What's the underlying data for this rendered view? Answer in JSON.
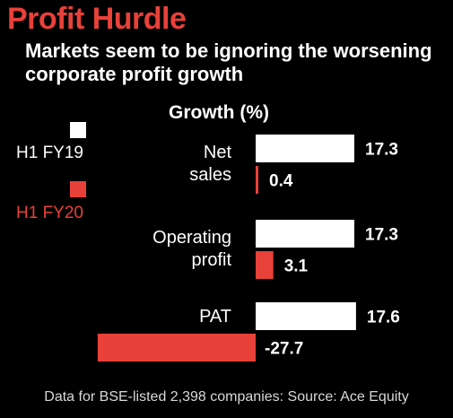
{
  "chart_data": {
    "type": "bar",
    "orientation": "horizontal",
    "title": "Profit Hurdle",
    "subtitle": "Markets seem to be ignoring the worsening corporate profit growth",
    "value_axis_label": "Growth (%)",
    "categories": [
      [
        "Net",
        "sales"
      ],
      [
        "Operating",
        "profit"
      ],
      [
        "PAT"
      ]
    ],
    "series": [
      {
        "name": "H1 FY19",
        "color": "#ffffff",
        "values": [
          17.3,
          17.3,
          17.6
        ],
        "value_labels": [
          "17.3",
          "17.3",
          "17.6"
        ]
      },
      {
        "name": "H1 FY20",
        "color": "#e8413a",
        "values": [
          0.4,
          3.1,
          -27.7
        ],
        "value_labels": [
          "0.4",
          "3.1",
          "-27.7"
        ]
      }
    ],
    "legend_position": "left",
    "grid": false,
    "source": "Data for BSE-listed 2,398 companies: Source: Ace Equity"
  }
}
